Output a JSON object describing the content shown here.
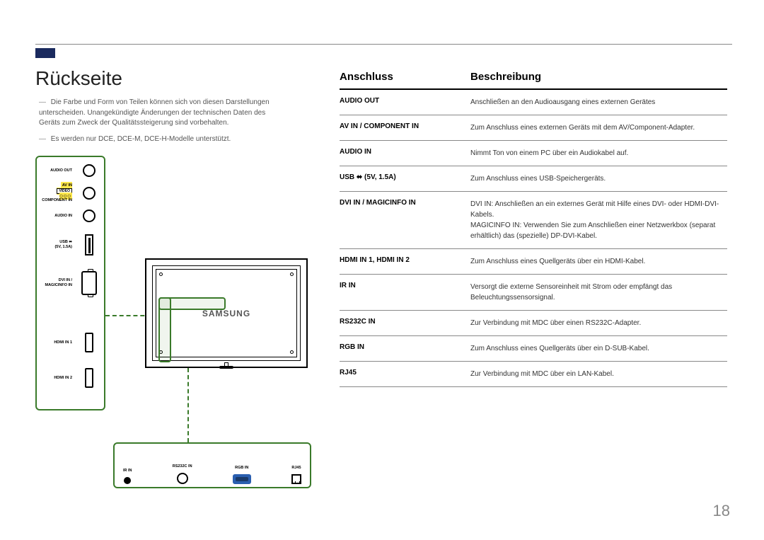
{
  "page": {
    "heading": "Rückseite",
    "note1": "Die Farbe und Form von Teilen können sich von diesen Darstellungen unterscheiden. Unangekündigte Änderungen der technischen Daten des Geräts zum Zweck der Qualitätssteigerung sind vorbehalten.",
    "note2": "Es werden nur DCE, DCE-M, DCE-H-Modelle unterstützt.",
    "monitor_logo": "SAMSUNG",
    "page_number": "18"
  },
  "left_ports": {
    "audio_out": "AUDIO OUT",
    "av_in_top": "AV IN",
    "video_box": "VIDEO",
    "component_in": "COMPONENT IN",
    "audio_in": "AUDIO IN",
    "usb_l1": "USB ⬌",
    "usb_l2": "(5V, 1.5A)",
    "dvi_l1": "DVI IN /",
    "dvi_l2": "MAGICINFO IN",
    "hdmi1": "HDMI IN 1",
    "hdmi2": "HDMI IN 2"
  },
  "bottom_ports": {
    "ir": "IR IN",
    "rs232c": "RS232C IN",
    "rgb": "RGB IN",
    "rj45": "RJ45"
  },
  "table": {
    "head_port": "Anschluss",
    "head_desc": "Beschreibung",
    "rows": [
      {
        "port": "AUDIO OUT",
        "desc": "Anschließen an den Audioausgang eines externen Gerätes"
      },
      {
        "port": "AV IN / COMPONENT IN",
        "desc": "Zum Anschluss eines externen Geräts mit dem AV/Component-Adapter."
      },
      {
        "port": "AUDIO IN",
        "desc": "Nimmt Ton von einem PC über ein Audiokabel auf."
      },
      {
        "port": "USB ⬌ (5V, 1.5A)",
        "desc": "Zum Anschluss eines USB-Speichergeräts."
      },
      {
        "port": "DVI IN / MAGICINFO IN",
        "desc": "DVI IN: Anschließen an ein externes Gerät mit Hilfe eines DVI- oder HDMI-DVI-Kabels.\nMAGICINFO IN: Verwenden Sie zum Anschließen einer Netzwerkbox (separat erhältlich) das (spezielle) DP-DVI-Kabel."
      },
      {
        "port": "HDMI IN 1, HDMI IN 2",
        "desc": "Zum Anschluss eines Quellgeräts über ein HDMI-Kabel."
      },
      {
        "port": "IR IN",
        "desc": "Versorgt die externe Sensoreinheit mit Strom oder empfängt das Beleuchtungssensorsignal."
      },
      {
        "port": "RS232C IN",
        "desc": "Zur Verbindung mit MDC über einen RS232C-Adapter."
      },
      {
        "port": "RGB IN",
        "desc": "Zum Anschluss eines Quellgeräts über ein D-SUB-Kabel."
      },
      {
        "port": "RJ45",
        "desc": "Zur Verbindung mit MDC über ein LAN-Kabel."
      }
    ]
  },
  "colors": {
    "accent_green": "#3a7a2a",
    "accent_navy": "#1a2a5e",
    "yellow": "#ffe84a",
    "vga_blue": "#2a5fb0"
  }
}
